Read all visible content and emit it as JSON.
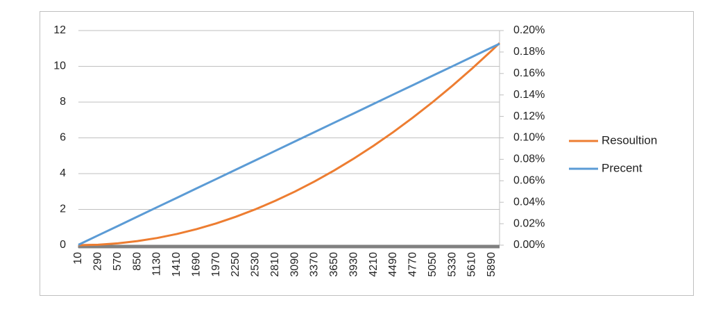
{
  "chart_data": {
    "type": "line",
    "x": [
      10,
      290,
      570,
      850,
      1130,
      1410,
      1690,
      1970,
      2250,
      2530,
      2810,
      3090,
      3370,
      3650,
      3930,
      4210,
      4490,
      4770,
      5050,
      5330,
      5610,
      5890,
      6000
    ],
    "series": [
      {
        "name": "Resoultion",
        "color": "#ed7d31",
        "values": [
          0,
          0.026,
          0.102,
          0.227,
          0.401,
          0.624,
          0.897,
          1.218,
          1.589,
          2.009,
          2.479,
          2.997,
          3.565,
          4.182,
          4.848,
          5.563,
          6.328,
          7.142,
          8.005,
          8.917,
          9.879,
          10.889,
          11.3
        ]
      },
      {
        "name": "Precent",
        "color": "#5b9bd5",
        "axis": "y2",
        "values": [
          0.0003,
          0.0091,
          0.0178,
          0.0266,
          0.0354,
          0.0441,
          0.0529,
          0.0616,
          0.0704,
          0.0791,
          0.0879,
          0.0967,
          0.1054,
          0.1142,
          0.1229,
          0.1317,
          0.1405,
          0.1492,
          0.158,
          0.1667,
          0.1755,
          0.1843,
          0.1877
        ]
      }
    ],
    "xlim": [
      10,
      6000
    ],
    "xticks": [
      10,
      290,
      570,
      850,
      1130,
      1410,
      1690,
      1970,
      2250,
      2530,
      2810,
      3090,
      3370,
      3650,
      3930,
      4210,
      4490,
      4770,
      5050,
      5330,
      5610,
      5890
    ],
    "ylim": [
      0,
      12
    ],
    "yticks": [
      0,
      2,
      4,
      6,
      8,
      10,
      12
    ],
    "y2lim": [
      0,
      0.2
    ],
    "y2ticks": [
      {
        "value": 0,
        "label": "0.00%"
      },
      {
        "value": 0.02,
        "label": "0.02%"
      },
      {
        "value": 0.04,
        "label": "0.04%"
      },
      {
        "value": 0.06,
        "label": "0.06%"
      },
      {
        "value": 0.08,
        "label": "0.08%"
      },
      {
        "value": 0.1,
        "label": "0.10%"
      },
      {
        "value": 0.12,
        "label": "0.12%"
      },
      {
        "value": 0.14,
        "label": "0.14%"
      },
      {
        "value": 0.16,
        "label": "0.16%"
      },
      {
        "value": 0.18,
        "label": "0.18%"
      },
      {
        "value": 0.2,
        "label": "0.20%"
      }
    ],
    "grid": true,
    "legend": "right"
  }
}
